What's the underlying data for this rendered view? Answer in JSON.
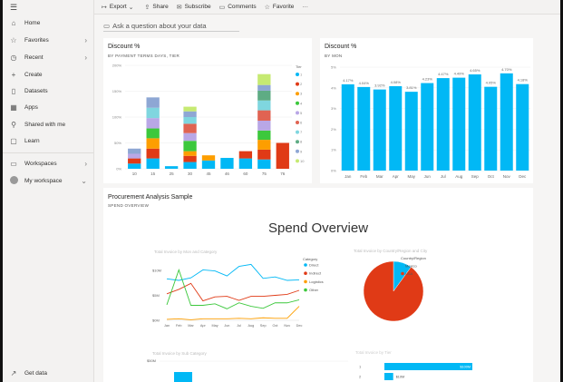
{
  "sidebar": {
    "items": [
      {
        "label": "Home",
        "icon": "home-icon",
        "chev": false
      },
      {
        "label": "Favorites",
        "icon": "star-icon",
        "chev": true
      },
      {
        "label": "Recent",
        "icon": "clock-icon",
        "chev": true
      },
      {
        "label": "Create",
        "icon": "plus-icon",
        "chev": false
      },
      {
        "label": "Datasets",
        "icon": "database-icon",
        "chev": false
      },
      {
        "label": "Apps",
        "icon": "apps-icon",
        "chev": false
      },
      {
        "label": "Shared with me",
        "icon": "share-person-icon",
        "chev": false
      },
      {
        "label": "Learn",
        "icon": "book-icon",
        "chev": false
      }
    ],
    "workspaces": "Workspaces",
    "my_workspace": "My workspace",
    "get_data": "Get data"
  },
  "toolbar": {
    "items": [
      {
        "label": "Export",
        "icon": "export-icon"
      },
      {
        "label": "Share",
        "icon": "share-icon"
      },
      {
        "label": "Subscribe",
        "icon": "subscribe-icon"
      },
      {
        "label": "Comments",
        "icon": "comment-icon"
      },
      {
        "label": "Favorite",
        "icon": "star-icon"
      }
    ],
    "more": "···"
  },
  "qa": {
    "placeholder": "Ask a question about your data"
  },
  "tile1": {
    "title": "Discount %",
    "subtitle": "BY PAYMENT TERMS DAYS, TIER"
  },
  "tile2": {
    "title": "Discount %",
    "subtitle": "BY MON"
  },
  "tile3": {
    "title": "Procurement Analysis Sample",
    "subtitle": "SPEND OVERVIEW",
    "report_title": "Spend Overview"
  },
  "colors": {
    "accent": "#01b8f5",
    "tiers": [
      "#01b8f5",
      "#e03a16",
      "#fd9e00",
      "#3cc83c",
      "#b9a7e6",
      "#e06352",
      "#7fd6df",
      "#5eac84",
      "#8ea7d4",
      "#c6ea72"
    ]
  },
  "chart_data": [
    {
      "type": "bar",
      "stacked": true,
      "title": "Discount %",
      "subtitle": "BY PAYMENT TERMS DAYS, TIER",
      "ylim": [
        0,
        200
      ],
      "yticks": [
        "0%",
        "50%",
        "100%",
        "150%",
        "200%"
      ],
      "categories": [
        "10",
        "15",
        "25",
        "30",
        "45",
        "46",
        "60",
        "75",
        "76"
      ],
      "legend_title": "Tier",
      "legend_placement": "right",
      "series": [
        {
          "name": "1",
          "values": [
            10,
            20,
            5,
            13,
            16,
            21,
            20,
            18,
            0
          ]
        },
        {
          "name": "2",
          "values": [
            10,
            19,
            0,
            12,
            0,
            0,
            14,
            19,
            50
          ]
        },
        {
          "name": "3",
          "values": [
            0,
            20,
            0,
            9,
            10,
            0,
            0,
            19,
            0
          ]
        },
        {
          "name": "4",
          "values": [
            0,
            19,
            0,
            20,
            0,
            0,
            0,
            18,
            0
          ]
        },
        {
          "name": "5",
          "values": [
            9,
            20,
            0,
            15,
            0,
            0,
            0,
            19,
            0
          ]
        },
        {
          "name": "6",
          "values": [
            0,
            0,
            0,
            18,
            0,
            0,
            0,
            20,
            0
          ]
        },
        {
          "name": "7",
          "values": [
            0,
            20,
            0,
            13,
            0,
            0,
            0,
            19,
            0
          ]
        },
        {
          "name": "8",
          "values": [
            0,
            0,
            0,
            0,
            0,
            0,
            0,
            19,
            0
          ]
        },
        {
          "name": "9",
          "values": [
            10,
            20,
            0,
            11,
            0,
            0,
            0,
            11,
            0
          ]
        },
        {
          "name": "10",
          "values": [
            0,
            0,
            0,
            9,
            0,
            0,
            0,
            21,
            0
          ]
        }
      ]
    },
    {
      "type": "bar",
      "title": "Discount %",
      "subtitle": "BY MON",
      "ylim": [
        0,
        5
      ],
      "yticks": [
        "0%",
        "1%",
        "2%",
        "3%",
        "4%",
        "5%"
      ],
      "categories": [
        "Jan",
        "Feb",
        "Mar",
        "Apr",
        "May",
        "Jun",
        "Jul",
        "Aug",
        "Sep",
        "Oct",
        "Nov",
        "Dec"
      ],
      "values": [
        4.17,
        4.04,
        3.92,
        4.08,
        3.81,
        4.23,
        4.47,
        4.49,
        4.65,
        4.05,
        4.7,
        4.18
      ],
      "labels": [
        "4.17%",
        "4.04%",
        "3.92%",
        "4.08%",
        "3.81%",
        "4.23%",
        "4.47%",
        "4.49%",
        "4.65%",
        "4.05%",
        "4.70%",
        "4.18%"
      ]
    },
    {
      "type": "line",
      "title": "Total Invoice by Mon and Category",
      "ylim": [
        0,
        12
      ],
      "yticks": [
        {
          "v": 0,
          "t": "$0M"
        },
        {
          "v": 5,
          "t": "$5M"
        },
        {
          "v": 10,
          "t": "$10M"
        }
      ],
      "categories": [
        "Jan",
        "Feb",
        "Mar",
        "Apr",
        "May",
        "Jun",
        "Jul",
        "Aug",
        "Sep",
        "Oct",
        "Nov",
        "Dec"
      ],
      "legend_title": "Category",
      "series": [
        {
          "name": "Direct",
          "color": "#01b8f5",
          "values": [
            8.3,
            8.0,
            8.5,
            10.1,
            9.9,
            8.9,
            10.8,
            11.2,
            8.4,
            8.7,
            8.0,
            8.1
          ]
        },
        {
          "name": "Indirect",
          "color": "#e03a16",
          "values": [
            5.3,
            6.2,
            7.4,
            3.9,
            4.7,
            4.8,
            4.0,
            4.8,
            4.8,
            5.0,
            5.2,
            6.0
          ]
        },
        {
          "name": "Logistics",
          "color": "#fd9e00",
          "values": [
            0.2,
            0.3,
            0.1,
            0.3,
            0.3,
            0.3,
            0.4,
            0.3,
            0.5,
            0.4,
            0.4,
            2.8
          ]
        },
        {
          "name": "Other",
          "color": "#3cc83c",
          "values": [
            3.1,
            10.1,
            3.0,
            3.0,
            3.3,
            2.3,
            3.5,
            2.8,
            2.4,
            3.5,
            3.5,
            4.1
          ]
        }
      ]
    },
    {
      "type": "pie",
      "title": "Total Invoice by Country/Region and City",
      "legend_title": "Country/Region",
      "slices": [
        {
          "name": "Mexico",
          "color": "#01b8f5",
          "value": 10
        },
        {
          "name": "USA",
          "color": "#e03a16",
          "value": 90
        }
      ]
    },
    {
      "type": "bar",
      "title": "Total Invoice by Sub Category",
      "ytick": "$50M"
    },
    {
      "type": "bar",
      "orientation": "horizontal",
      "title": "Total Invoice by Tier",
      "categories": [
        "1",
        "2"
      ],
      "values": [
        100,
        10
      ],
      "labels": [
        "$100M",
        "$10M"
      ]
    }
  ]
}
